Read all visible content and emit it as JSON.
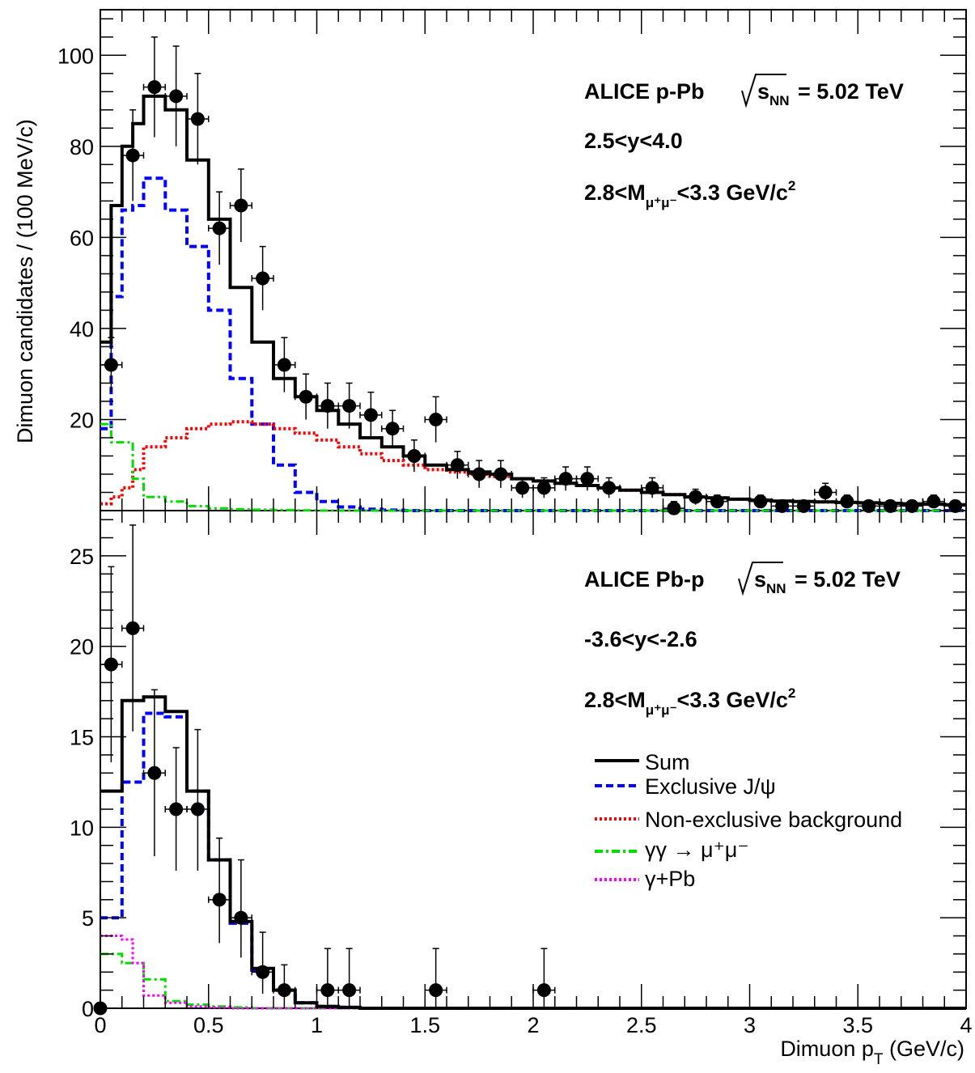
{
  "chart_data": [
    {
      "type": "histogram",
      "panel": "top",
      "annotation": {
        "line1_prefix": "ALICE p-Pb",
        "line1_sqrt_label": "s",
        "line1_sqrt_sub": "NN",
        "line1_suffix": "= 5.02 TeV",
        "line2": "2.5<y<4.0",
        "line3_prefix": "2.8<M",
        "line3_sub": "μ⁺μ⁻",
        "line3_suffix": "<3.3 GeV/c",
        "line3_sup": "2"
      },
      "ylabel": "Dimuon candidates / (100 MeV/c)",
      "xlim": [
        0,
        4
      ],
      "ylim": [
        0,
        110
      ],
      "yticks": [
        "20",
        "40",
        "60",
        "80",
        "100"
      ],
      "bin_edges_low": [
        0,
        0.05,
        0.1,
        0.15,
        0.2,
        0.3,
        0.4,
        0.5,
        0.6,
        0.7,
        0.8,
        0.9,
        1.0,
        1.1,
        1.2,
        1.3,
        1.4,
        1.5,
        1.6,
        1.7,
        1.8,
        1.9,
        2.0,
        2.1,
        2.2,
        2.3,
        2.4,
        2.5,
        2.6,
        2.7,
        2.8,
        2.9,
        3.0,
        3.1,
        3.2,
        3.3,
        3.4,
        3.5,
        3.6,
        3.7,
        3.8,
        3.9
      ],
      "bin_edges_high": 4.0,
      "series": [
        {
          "name": "Sum",
          "values": [
            37,
            67,
            80,
            85,
            91,
            88,
            77,
            64,
            49,
            37,
            29,
            25,
            22,
            19,
            16,
            14,
            12,
            10,
            9,
            8.5,
            8,
            7,
            6.5,
            6,
            5.5,
            5,
            4.5,
            4,
            3.5,
            3,
            2.8,
            2.5,
            2.3,
            2.1,
            2,
            1.9,
            1.8,
            1.7,
            1.6,
            1.5,
            1.4,
            1.3
          ]
        },
        {
          "name": "Exclusive J/ψ",
          "values": [
            18,
            47,
            66,
            67,
            73,
            66,
            58,
            44,
            29,
            19,
            10,
            4,
            2,
            0.8,
            0.3,
            0.1,
            0,
            0,
            0,
            0,
            0,
            0,
            0,
            0,
            0,
            0,
            0,
            0,
            0,
            0,
            0,
            0,
            0,
            0,
            0,
            0,
            0,
            0,
            0,
            0,
            0,
            0
          ]
        },
        {
          "name": "Non-exclusive background",
          "values": [
            1.5,
            3,
            5,
            9,
            14,
            16,
            18,
            19,
            19.5,
            19,
            18,
            17,
            15.5,
            14,
            12.5,
            11,
            10,
            9,
            8.5,
            8,
            7.5,
            7,
            6.5,
            6,
            5.5,
            5,
            4.5,
            4,
            3.5,
            3,
            2.8,
            2.5,
            2.3,
            2.1,
            2,
            1.9,
            1.8,
            1.7,
            1.6,
            1.5,
            1.4,
            1.3
          ]
        },
        {
          "name": "γγ → μ⁺μ⁻",
          "values": [
            19,
            15,
            15,
            7,
            3,
            2,
            1,
            0.5,
            0.3,
            0.2,
            0.1,
            0.05,
            0,
            0,
            0,
            0,
            0,
            0,
            0,
            0,
            0,
            0,
            0,
            0,
            0,
            0,
            0,
            0,
            0,
            0,
            0,
            0,
            0,
            0,
            0,
            0,
            0,
            0,
            0,
            0,
            0,
            0
          ]
        }
      ],
      "data_points": {
        "x": [
          0.05,
          0.15,
          0.25,
          0.35,
          0.45,
          0.55,
          0.65,
          0.75,
          0.85,
          0.95,
          1.05,
          1.15,
          1.25,
          1.35,
          1.45,
          1.55,
          1.65,
          1.75,
          1.85,
          1.95,
          2.05,
          2.15,
          2.25,
          2.35,
          2.55,
          2.65,
          2.75,
          2.85,
          3.05,
          3.15,
          3.25,
          3.35,
          3.45,
          3.55,
          3.65,
          3.75,
          3.85,
          3.95
        ],
        "y": [
          32,
          78,
          93,
          91,
          86,
          62,
          67,
          51,
          32,
          25,
          23,
          23,
          21,
          18,
          12,
          20,
          10,
          8,
          8,
          5,
          5,
          7,
          7,
          5,
          5,
          0.5,
          3,
          2,
          2,
          1,
          1,
          4,
          2,
          1,
          1,
          1,
          2,
          1
        ],
        "y_err": [
          6,
          10,
          11,
          11,
          10,
          8,
          8,
          7,
          6,
          5,
          5,
          5,
          5,
          4,
          3.5,
          5,
          3,
          3,
          3,
          2.2,
          2.2,
          2.6,
          2.6,
          2.2,
          2.2,
          1.5,
          1.7,
          1.4,
          1.4,
          1,
          1,
          2,
          1.4,
          1,
          1,
          1,
          1.4,
          1
        ]
      }
    },
    {
      "type": "histogram",
      "panel": "bottom",
      "annotation": {
        "line1_prefix": "ALICE Pb-p",
        "line1_sqrt_label": "s",
        "line1_sqrt_sub": "NN",
        "line1_suffix": "= 5.02 TeV",
        "line2": "-3.6<y<-2.6",
        "line3_prefix": "2.8<M",
        "line3_sub": "μ⁺μ⁻",
        "line3_suffix": "<3.3 GeV/c",
        "line3_sup": "2"
      },
      "xlabel_prefix": "Dimuon p",
      "xlabel_sub": "T",
      "xlabel_suffix": " (GeV/c)",
      "xlim": [
        0,
        4
      ],
      "ylim": [
        0,
        27.5
      ],
      "xticks": [
        "0",
        "0.5",
        "1",
        "1.5",
        "2",
        "2.5",
        "3",
        "3.5",
        "4"
      ],
      "yticks": [
        "0",
        "5",
        "10",
        "15",
        "20",
        "25"
      ],
      "bin_edges_low": [
        0,
        0.05,
        0.1,
        0.15,
        0.2,
        0.3,
        0.4,
        0.5,
        0.6,
        0.7,
        0.8,
        0.9,
        1.0,
        1.1,
        1.2
      ],
      "bin_edges_high": 4.0,
      "series": [
        {
          "name": "Sum",
          "values": [
            12,
            12,
            17,
            17,
            17.2,
            16.4,
            12,
            8.2,
            4.8,
            2.2,
            1,
            0.3,
            0.1,
            0.05,
            0
          ]
        },
        {
          "name": "Exclusive J/ψ",
          "values": [
            5,
            5,
            12.5,
            12.5,
            16.3,
            16.1,
            12,
            8.2,
            4.7,
            2.1,
            1,
            0.3,
            0.1,
            0.05,
            0
          ]
        },
        {
          "name": "γγ → μ⁺μ⁻",
          "values": [
            3,
            3,
            2.5,
            2.5,
            1.6,
            0.4,
            0.2,
            0.1,
            0.05,
            0,
            0,
            0,
            0,
            0,
            0
          ]
        },
        {
          "name": "γ+Pb",
          "values": [
            4,
            4,
            3.8,
            2.5,
            0.7,
            0.3,
            0.1,
            0.05,
            0,
            0,
            0,
            0,
            0,
            0,
            0
          ]
        }
      ],
      "data_points": {
        "x": [
          0.05,
          0.15,
          0.25,
          0.35,
          0.45,
          0.55,
          0.65,
          0.75,
          0.85,
          1.05,
          1.15,
          1.55,
          2.05
        ],
        "y": [
          19,
          21,
          13,
          11,
          11,
          6,
          5,
          2,
          1,
          1,
          1,
          1,
          1
        ],
        "y_err": [
          5.4,
          5.7,
          4.6,
          3.4,
          4.4,
          3.4,
          3.2,
          2.2,
          1.4,
          2.3,
          2.3,
          2.3,
          2.3
        ],
        "y_err_low": [
          5.4,
          5.7,
          4.6,
          3.4,
          3.4,
          2.4,
          2.2,
          1.2,
          1,
          1,
          1,
          1,
          1
        ]
      },
      "extra_points": {
        "x": [
          0.0
        ],
        "y": [
          0
        ]
      }
    }
  ],
  "legend": {
    "placement": "bottom-panel-right",
    "entries": [
      {
        "label": "Sum",
        "color": "#000000",
        "style": "solid"
      },
      {
        "label": "Exclusive J/ψ",
        "color": "#0000ff",
        "style": "dashed"
      },
      {
        "label": "Non-exclusive background",
        "color": "#ff0000",
        "style": "dotted"
      },
      {
        "label": "γγ → μ⁺μ⁻",
        "color": "#00dd00",
        "style": "dashdot"
      },
      {
        "label": "γ+Pb",
        "color": "#ff00ff",
        "style": "dotted"
      }
    ]
  },
  "colors": {
    "sum": "#000000",
    "exclusive": "#0000ff",
    "nonexclusive": "#ff0000",
    "gammagamma": "#00dd00",
    "gammapb": "#ff00ff"
  }
}
